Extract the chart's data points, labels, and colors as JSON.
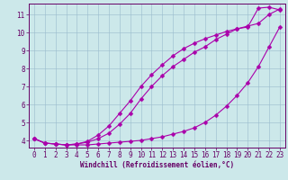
{
  "xlabel": "Windchill (Refroidissement éolien,°C)",
  "ylabel": "",
  "bg_color": "#cce8ea",
  "line_color": "#aa00aa",
  "grid_color": "#99bbcc",
  "axis_color": "#660066",
  "text_color": "#660066",
  "xlim": [
    -0.5,
    23.5
  ],
  "ylim": [
    3.6,
    11.6
  ],
  "xticks": [
    0,
    1,
    2,
    3,
    4,
    5,
    6,
    7,
    8,
    9,
    10,
    11,
    12,
    13,
    14,
    15,
    16,
    17,
    18,
    19,
    20,
    21,
    22,
    23
  ],
  "yticks": [
    4,
    5,
    6,
    7,
    8,
    9,
    10,
    11
  ],
  "line_bottom_x": [
    0,
    1,
    2,
    3,
    4,
    5,
    6,
    7,
    8,
    9,
    10,
    11,
    12,
    13,
    14,
    15,
    16,
    17,
    18,
    19,
    20,
    21,
    22,
    23
  ],
  "line_bottom_y": [
    4.1,
    3.85,
    3.8,
    3.75,
    3.75,
    3.75,
    3.8,
    3.85,
    3.9,
    3.95,
    4.0,
    4.1,
    4.2,
    4.35,
    4.5,
    4.7,
    5.0,
    5.4,
    5.9,
    6.5,
    7.2,
    8.1,
    9.2,
    10.3
  ],
  "line_mid_x": [
    0,
    1,
    2,
    3,
    4,
    5,
    6,
    7,
    8,
    9,
    10,
    11,
    12,
    13,
    14,
    15,
    16,
    17,
    18,
    19,
    20,
    21,
    22,
    23
  ],
  "line_mid_y": [
    4.1,
    3.85,
    3.8,
    3.75,
    3.8,
    3.9,
    4.1,
    4.4,
    4.9,
    5.5,
    6.3,
    7.0,
    7.6,
    8.1,
    8.5,
    8.9,
    9.2,
    9.6,
    9.9,
    10.2,
    10.35,
    10.5,
    11.0,
    11.3
  ],
  "line_top_x": [
    0,
    1,
    2,
    3,
    4,
    5,
    6,
    7,
    8,
    9,
    10,
    11,
    12,
    13,
    14,
    15,
    16,
    17,
    18,
    19,
    20,
    21,
    22,
    23
  ],
  "line_top_y": [
    4.1,
    3.85,
    3.8,
    3.75,
    3.8,
    3.95,
    4.3,
    4.8,
    5.5,
    6.2,
    7.0,
    7.65,
    8.2,
    8.7,
    9.1,
    9.4,
    9.65,
    9.85,
    10.05,
    10.2,
    10.3,
    11.35,
    11.4,
    11.25
  ],
  "marker": "D",
  "marker_size": 2.5,
  "line_width": 0.8,
  "tick_fontsize": 5.5,
  "xlabel_fontsize": 5.5
}
